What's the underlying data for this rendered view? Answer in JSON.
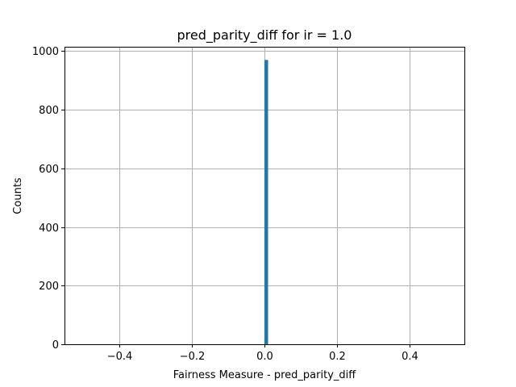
{
  "chart_data": {
    "type": "bar",
    "title": "pred_parity_diff for ir = 1.0",
    "xlabel": "Fairness Measure - pred_parity_diff",
    "ylabel": "Counts",
    "xlim": [
      -0.55,
      0.55
    ],
    "ylim": [
      0,
      1015
    ],
    "grid": true,
    "x_ticks": [
      -0.4,
      -0.2,
      0.0,
      0.2,
      0.4
    ],
    "x_tick_labels": [
      "−0.4",
      "−0.2",
      "0.0",
      "0.2",
      "0.4"
    ],
    "y_ticks": [
      0,
      200,
      400,
      600,
      800,
      1000
    ],
    "y_tick_labels": [
      "0",
      "200",
      "400",
      "600",
      "800",
      "1000"
    ],
    "bars": [
      {
        "x_start": 0.0,
        "x_end": 0.01,
        "value": 970
      }
    ],
    "colors": {
      "bar": "#1f77b4",
      "grid": "#b0b0b0"
    }
  }
}
